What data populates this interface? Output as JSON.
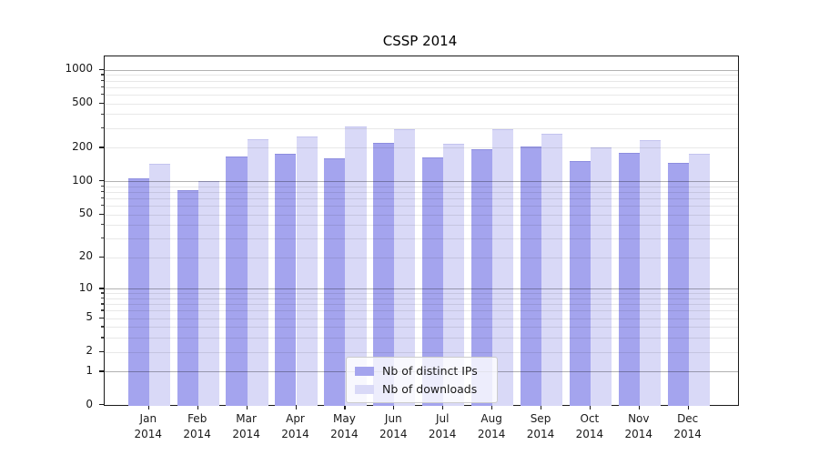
{
  "chart_data": {
    "type": "bar",
    "title": "CSSP 2014",
    "categories": [
      "Jan",
      "Feb",
      "Mar",
      "Apr",
      "May",
      "Jun",
      "Jul",
      "Aug",
      "Sep",
      "Oct",
      "Nov",
      "Dec"
    ],
    "category_year": "2014",
    "series": [
      {
        "name": "Nb of distinct IPs",
        "color": "#a4a4ee",
        "edge_color": "#8d8ddf",
        "values": [
          105,
          83,
          168,
          175,
          160,
          221,
          165,
          193,
          206,
          152,
          180,
          146
        ]
      },
      {
        "name": "Nb of downloads",
        "color": "#d9d9f7",
        "edge_color": "#c3c3ef",
        "values": [
          144,
          101,
          240,
          250,
          308,
          291,
          218,
          294,
          268,
          201,
          235,
          178
        ]
      }
    ],
    "yscale": "log1p",
    "ylim": [
      0,
      1325
    ],
    "y_ticks": [
      0,
      1,
      2,
      5,
      10,
      20,
      50,
      100,
      200,
      500,
      1000
    ],
    "xlabel": "",
    "ylabel": "",
    "grid": "both",
    "legend_position": "lower center"
  },
  "colors": {
    "spine": "#1a1a1a",
    "major_grid": "rgba(0,0,0,0.30)",
    "minor_grid": "rgba(0,0,0,0.09)",
    "text": "#1a1a1a",
    "legend_border": "#cccccc",
    "legend_background": "rgba(255,255,255,0.8)"
  }
}
